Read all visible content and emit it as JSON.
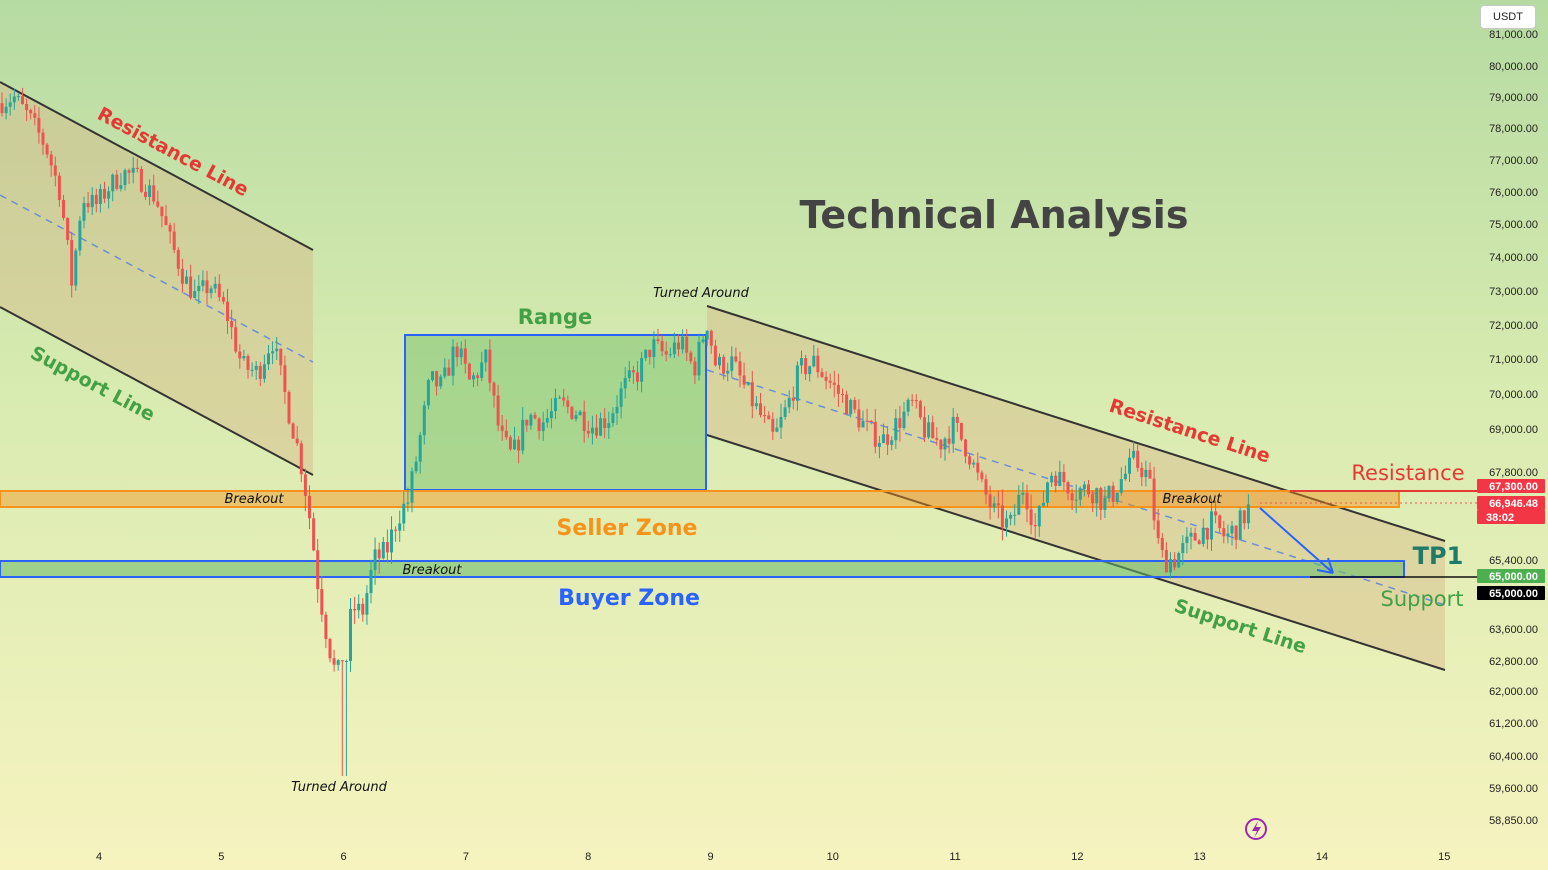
{
  "title": "Technical Analysis",
  "currency": "USDT",
  "chart_data": {
    "type": "candlestick",
    "x_ticks": [
      "4",
      "5",
      "6",
      "7",
      "8",
      "9",
      "10",
      "11",
      "12",
      "13",
      "14",
      "15"
    ],
    "y_ticks": [
      "81,000.00",
      "80,000.00",
      "79,000.00",
      "78,000.00",
      "77,000.00",
      "76,000.00",
      "75,000.00",
      "74,000.00",
      "73,000.00",
      "72,000.00",
      "71,000.00",
      "70,000.00",
      "69,000.00",
      "67,800.00",
      "65,400.00",
      "63,600.00",
      "62,800.00",
      "62,000.00",
      "61,200.00",
      "60,400.00",
      "59,600.00",
      "58,850.00"
    ],
    "price_tags": [
      {
        "text": "67,300.00",
        "color": "#f23645"
      },
      {
        "text": "66,946.48",
        "color": "#f23645"
      },
      {
        "text": "38:02",
        "color": "#f23645"
      },
      {
        "text": "65,000.00",
        "color": "#4caf50"
      },
      {
        "text": "65,000.00",
        "color": "#000000"
      }
    ],
    "annotations": {
      "resistance_line_left": "Resistance Line",
      "support_line_left": "Support Line",
      "resistance_line_right": "Resistance Line",
      "support_line_right": "Support Line",
      "range": "Range",
      "turned_around_top": "Turned Around",
      "turned_around_bottom": "Turned Around",
      "breakout_1": "Breakout",
      "breakout_2": "Breakout",
      "breakout_3": "Breakout",
      "seller_zone": "Seller Zone",
      "buyer_zone": "Buyer Zone",
      "resistance": "Resistance",
      "support": "Support",
      "tp1": "TP1"
    },
    "levels": {
      "resistance": 67300,
      "support": 65000
    },
    "colors": {
      "up": "#26a69a",
      "down": "#ef5350",
      "seller": "#f7931a",
      "buyer": "#2962ff",
      "range": "#4caf50"
    }
  }
}
